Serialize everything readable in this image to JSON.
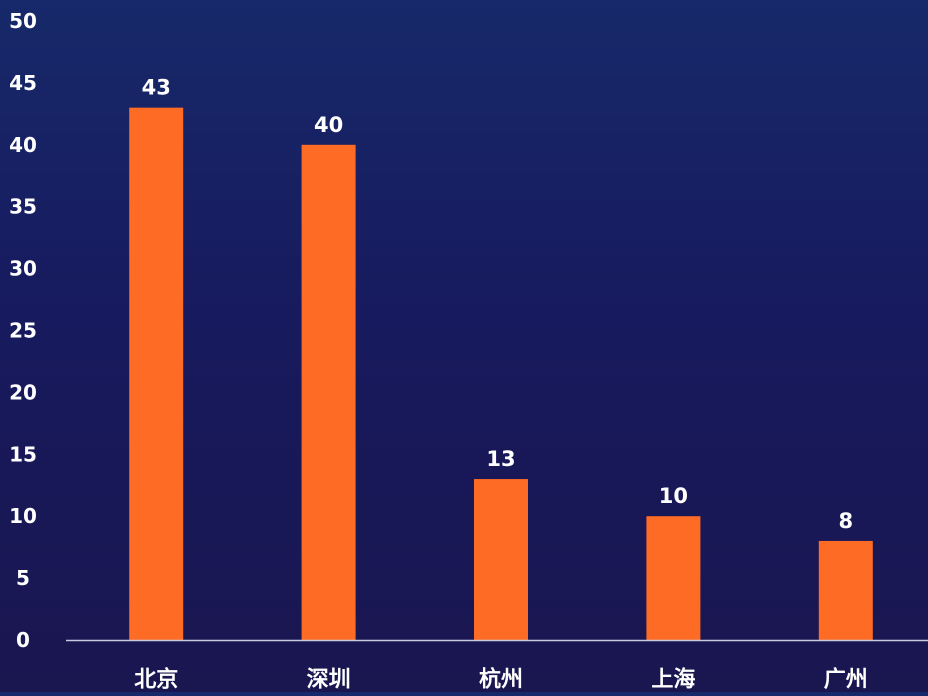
{
  "chart_data": {
    "type": "bar",
    "categories": [
      "北京",
      "深圳",
      "杭州",
      "上海",
      "广州"
    ],
    "values": [
      43,
      40,
      13,
      10,
      8
    ],
    "ylim": [
      0,
      50
    ],
    "yticks": [
      0,
      5,
      10,
      15,
      20,
      25,
      30,
      35,
      40,
      45,
      50
    ],
    "grid": false,
    "title": "",
    "xlabel": "",
    "ylabel": ""
  },
  "colors": {
    "bar": "#fd6b25",
    "axis": "#c8cbe0",
    "text": "#ffffff"
  }
}
